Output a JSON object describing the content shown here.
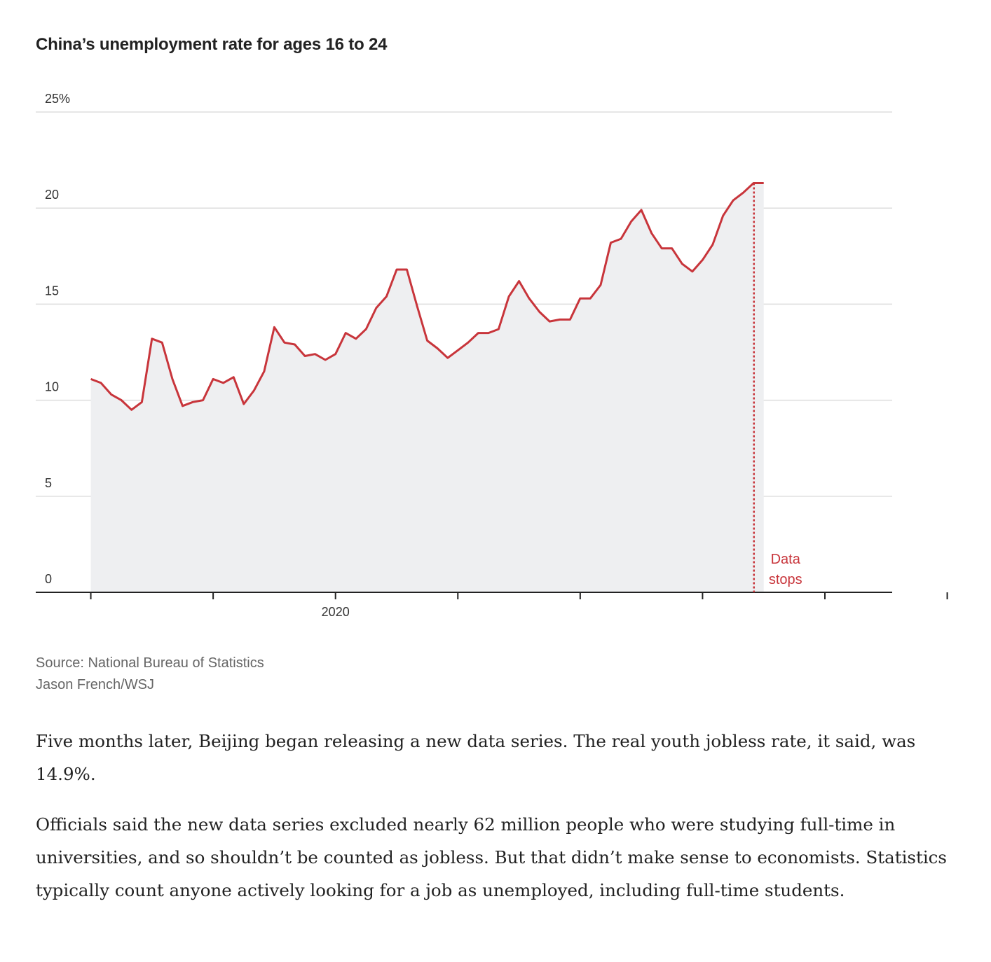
{
  "chart_data": {
    "type": "area",
    "title": "China’s unemployment rate for ages 16 to 24",
    "xlabel": "",
    "ylabel": "",
    "y_ticks": [
      "0",
      "5",
      "10",
      "15",
      "20",
      "25%"
    ],
    "y_tick_values": [
      0,
      5,
      10,
      15,
      20,
      25
    ],
    "ylim": [
      0,
      25
    ],
    "x_ticks": [
      "",
      "",
      "2020",
      "",
      "",
      "",
      "",
      "",
      ""
    ],
    "x_tick_values": [
      2018,
      2019,
      2020,
      2021,
      2022,
      2023,
      2024,
      2025,
      2026
    ],
    "xlim": [
      2017.55,
      2024.55
    ],
    "grid": true,
    "series": [
      {
        "color": "#c8353b",
        "fill": "#eeeff1",
        "x": [
          2018.0,
          2018.083,
          2018.167,
          2018.25,
          2018.333,
          2018.417,
          2018.5,
          2018.583,
          2018.667,
          2018.75,
          2018.833,
          2018.917,
          2019.0,
          2019.083,
          2019.167,
          2019.25,
          2019.333,
          2019.417,
          2019.5,
          2019.583,
          2019.667,
          2019.75,
          2019.833,
          2019.917,
          2020.0,
          2020.083,
          2020.167,
          2020.25,
          2020.333,
          2020.417,
          2020.5,
          2020.583,
          2020.667,
          2020.75,
          2020.833,
          2020.917,
          2021.0,
          2021.083,
          2021.167,
          2021.25,
          2021.333,
          2021.417,
          2021.5,
          2021.583,
          2021.667,
          2021.75,
          2021.833,
          2021.917,
          2022.0,
          2022.083,
          2022.167,
          2022.25,
          2022.333,
          2022.417,
          2022.5,
          2022.583,
          2022.667,
          2022.75,
          2022.833,
          2022.917,
          2023.0,
          2023.083,
          2023.167,
          2023.25,
          2023.333,
          2023.417,
          2023.5
        ],
        "values": [
          11.1,
          10.9,
          10.3,
          10.0,
          9.5,
          9.9,
          13.2,
          13.0,
          11.1,
          9.7,
          9.9,
          10.0,
          11.1,
          10.9,
          11.2,
          9.8,
          10.5,
          11.5,
          13.8,
          13.0,
          12.9,
          12.3,
          12.4,
          12.1,
          12.4,
          13.5,
          13.2,
          13.7,
          14.8,
          15.4,
          16.8,
          16.8,
          14.9,
          13.1,
          12.7,
          12.2,
          12.6,
          13.0,
          13.5,
          13.5,
          13.7,
          15.4,
          16.2,
          15.3,
          14.6,
          14.1,
          14.2,
          14.2,
          15.3,
          15.3,
          16.0,
          18.2,
          18.4,
          19.3,
          19.9,
          18.7,
          17.9,
          17.9,
          17.1,
          16.7,
          17.3,
          18.1,
          19.6,
          20.4,
          20.8,
          21.3,
          21.3
        ]
      }
    ],
    "annotations": [
      {
        "text_lines": [
          "Data",
          "stops"
        ],
        "x": 2023.42,
        "style": "dotted-vertical"
      }
    ]
  },
  "source": {
    "line1": "Source: National Bureau of Statistics",
    "line2": "Jason French/WSJ"
  },
  "article": {
    "p1": "Five months later, Beijing began releasing a new data series. The real youth jobless rate, it said, was 14.9%.",
    "p2": "Officials said the new data series excluded nearly 62 million people who were studying full-time in universities, and so shouldn’t be counted as jobless. But that didn’t make sense to economists. Statistics typically count anyone actively looking for a job as unemployed, including full-time students."
  }
}
